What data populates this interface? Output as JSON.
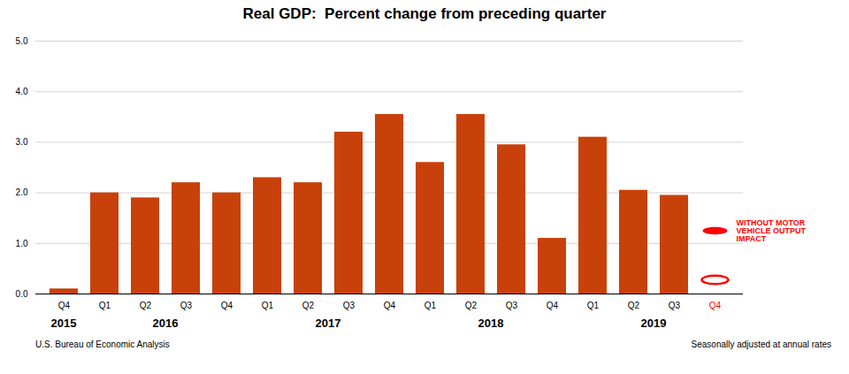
{
  "chart_data": {
    "type": "bar",
    "title": "Real GDP:  Percent change from preceding quarter",
    "categories": [
      "Q4",
      "Q1",
      "Q2",
      "Q3",
      "Q4",
      "Q1",
      "Q2",
      "Q3",
      "Q4",
      "Q1",
      "Q2",
      "Q3",
      "Q4",
      "Q1",
      "Q2",
      "Q3",
      "Q4"
    ],
    "values": [
      0.1,
      2.0,
      1.9,
      2.2,
      2.0,
      2.3,
      2.2,
      3.2,
      3.55,
      2.6,
      3.55,
      2.95,
      1.1,
      3.1,
      2.05,
      1.95,
      null
    ],
    "color": "#C8410A",
    "ylim": [
      0,
      5
    ],
    "yticks": [
      0,
      1,
      2,
      3,
      4,
      5
    ],
    "grid": true,
    "tick_label_colors": [
      "black",
      "black",
      "black",
      "black",
      "black",
      "black",
      "black",
      "black",
      "black",
      "black",
      "black",
      "black",
      "black",
      "black",
      "black",
      "black",
      "red"
    ],
    "year_groups": [
      {
        "label": "2015",
        "indices": [
          0
        ]
      },
      {
        "label": "2016",
        "indices": [
          1,
          2,
          3,
          4
        ]
      },
      {
        "label": "2017",
        "indices": [
          5,
          6,
          7,
          8
        ]
      },
      {
        "label": "2018",
        "indices": [
          9,
          10,
          11,
          12
        ]
      },
      {
        "label": "2019",
        "indices": [
          13,
          14,
          15,
          16
        ]
      }
    ],
    "markers": [
      {
        "y": 1.25,
        "marker": "filled ellipse",
        "color": "red"
      },
      {
        "y": 0.28,
        "marker": "ring",
        "color": "red"
      }
    ],
    "annotation": "WITHOUT MOTOR\nVEHICLE OUTPUT\nIMPACT",
    "annotation_color": "red",
    "footnotes": [
      "U.S. Bureau of Economic Analysis",
      "Seasonally adjusted at annual rates"
    ]
  }
}
